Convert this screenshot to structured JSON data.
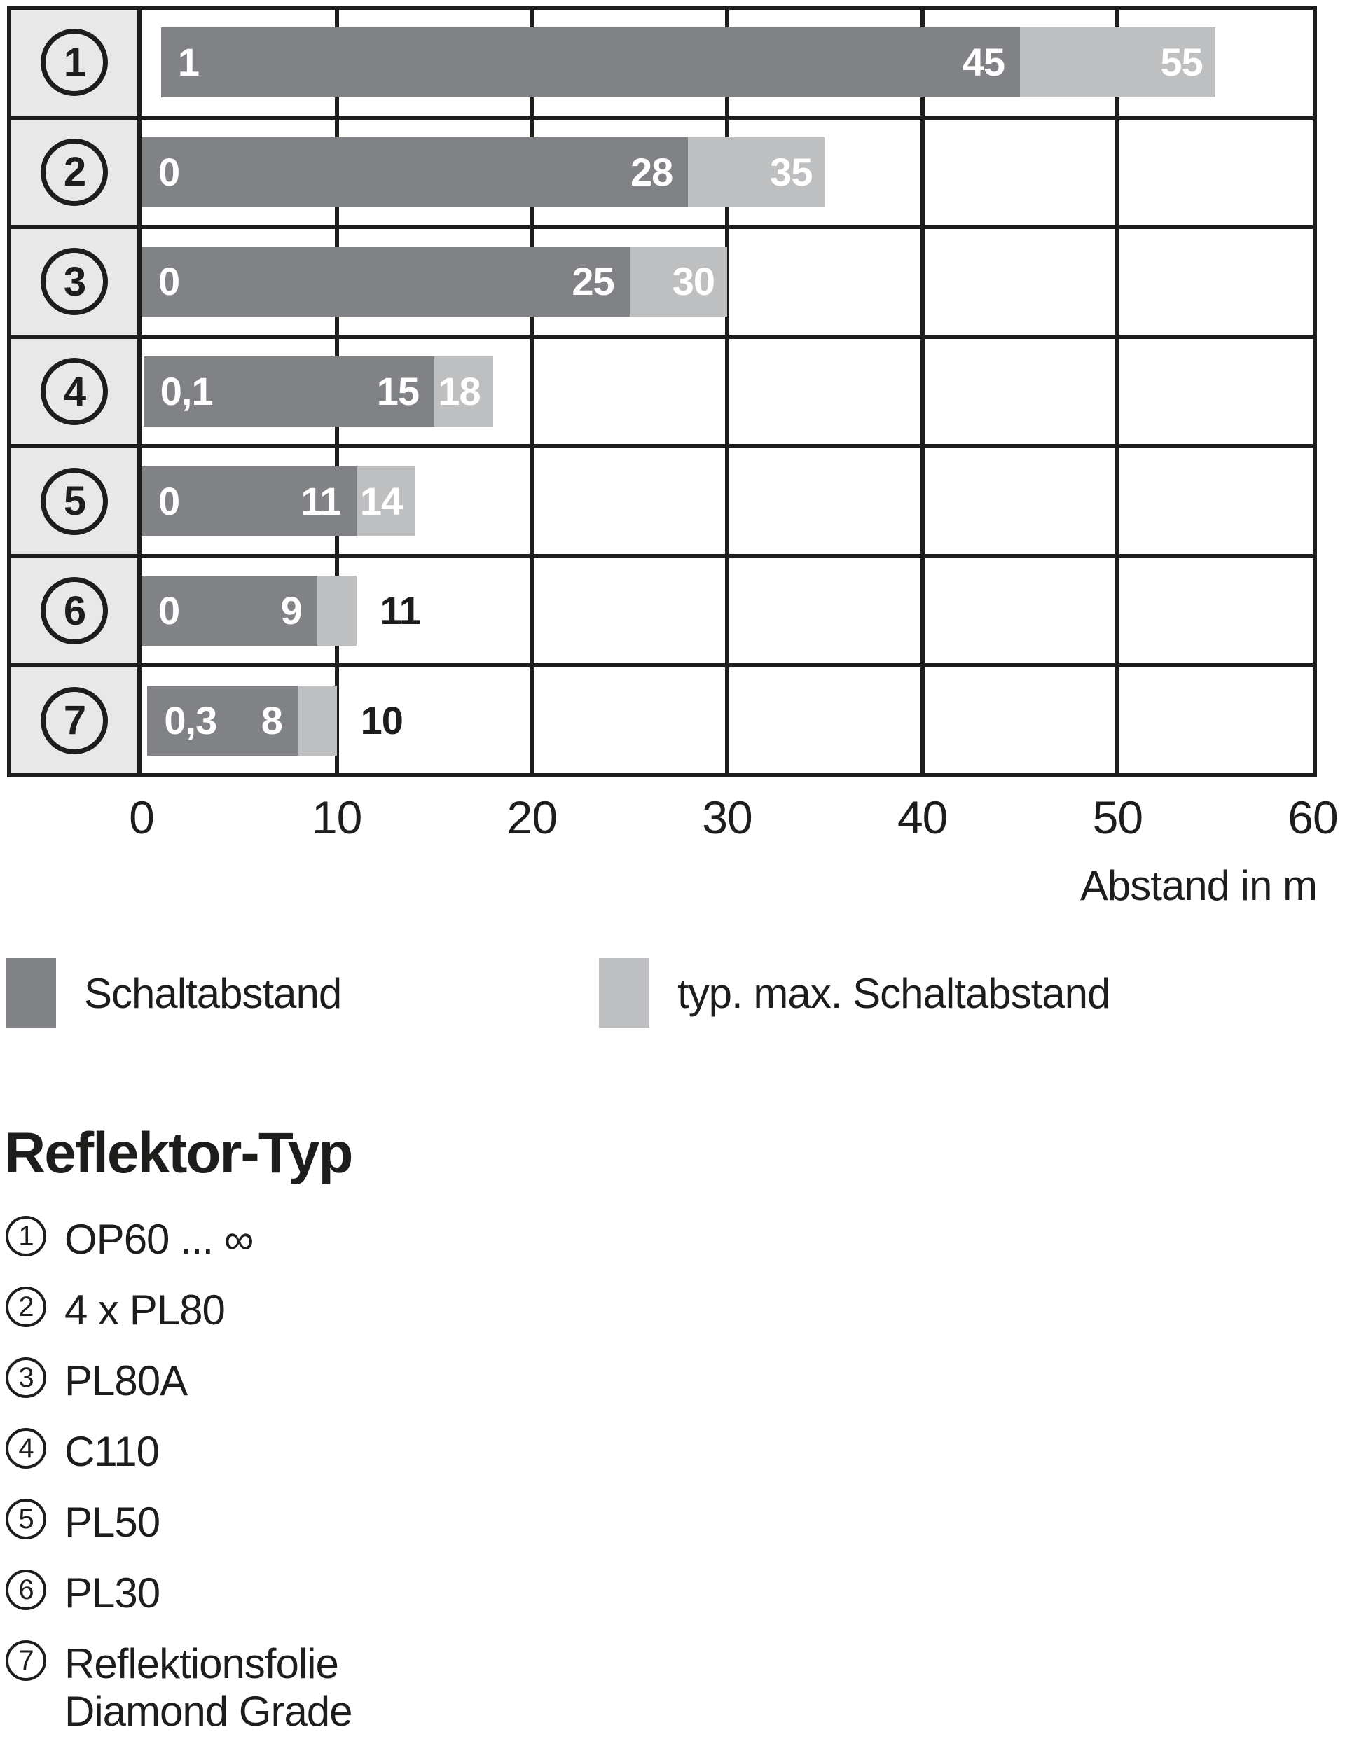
{
  "chart_data": {
    "type": "bar",
    "orientation": "horizontal",
    "xlabel": "Abstand in m",
    "xlim": [
      0,
      60
    ],
    "x_ticks": [
      0,
      10,
      20,
      30,
      40,
      50,
      60
    ],
    "grid": "vertical lines every 10 m",
    "legend_position": "below",
    "categories": [
      "1",
      "2",
      "3",
      "4",
      "5",
      "6",
      "7"
    ],
    "series": [
      {
        "name": "Schaltabstand",
        "color": "#808285"
      },
      {
        "name": "typ. max. Schaltabstand",
        "color": "#bdbfc1"
      }
    ],
    "rows": [
      {
        "index": "1",
        "start": 1,
        "start_label": "1",
        "dark_end": 45,
        "dark_label": "45",
        "light_end": 55,
        "light_label": "55",
        "light_label_outside": false
      },
      {
        "index": "2",
        "start": 0,
        "start_label": "0",
        "dark_end": 28,
        "dark_label": "28",
        "light_end": 35,
        "light_label": "35",
        "light_label_outside": false
      },
      {
        "index": "3",
        "start": 0,
        "start_label": "0",
        "dark_end": 25,
        "dark_label": "25",
        "light_end": 30,
        "light_label": "30",
        "light_label_outside": false
      },
      {
        "index": "4",
        "start": 0.1,
        "start_label": "0,1",
        "dark_end": 15,
        "dark_label": "15",
        "light_end": 18,
        "light_label": "18",
        "light_label_outside": false
      },
      {
        "index": "5",
        "start": 0,
        "start_label": "0",
        "dark_end": 11,
        "dark_label": "11",
        "light_end": 14,
        "light_label": "14",
        "light_label_outside": false
      },
      {
        "index": "6",
        "start": 0,
        "start_label": "0",
        "dark_end": 9,
        "dark_label": "9",
        "light_end": 11,
        "light_label": "11",
        "light_label_outside": true
      },
      {
        "index": "7",
        "start": 0.3,
        "start_label": "0,3",
        "dark_end": 8,
        "dark_label": "8",
        "light_end": 10,
        "light_label": "10",
        "light_label_outside": true
      }
    ]
  },
  "axis": {
    "xlabel": "Abstand in m"
  },
  "legend": {
    "items": [
      {
        "label": "Schaltabstand",
        "color": "#808285"
      },
      {
        "label": "typ. max. Schaltabstand",
        "color": "#bdbfc1"
      }
    ]
  },
  "reflector_list": {
    "heading": "Reflektor-Typ",
    "items": [
      {
        "num": "1",
        "lines": [
          "OP60 ... ∞"
        ]
      },
      {
        "num": "2",
        "lines": [
          "4 x PL80"
        ]
      },
      {
        "num": "3",
        "lines": [
          "PL80A"
        ]
      },
      {
        "num": "4",
        "lines": [
          "C110"
        ]
      },
      {
        "num": "5",
        "lines": [
          "PL50"
        ]
      },
      {
        "num": "6",
        "lines": [
          "PL30"
        ]
      },
      {
        "num": "7",
        "lines": [
          "Reflektionsfolie",
          "Diamond Grade"
        ]
      }
    ]
  },
  "colors": {
    "dark_bar": "#808285",
    "light_bar": "#bdbfc1",
    "row_label_bg": "#e8e8e8",
    "line": "#1d1d1b"
  }
}
